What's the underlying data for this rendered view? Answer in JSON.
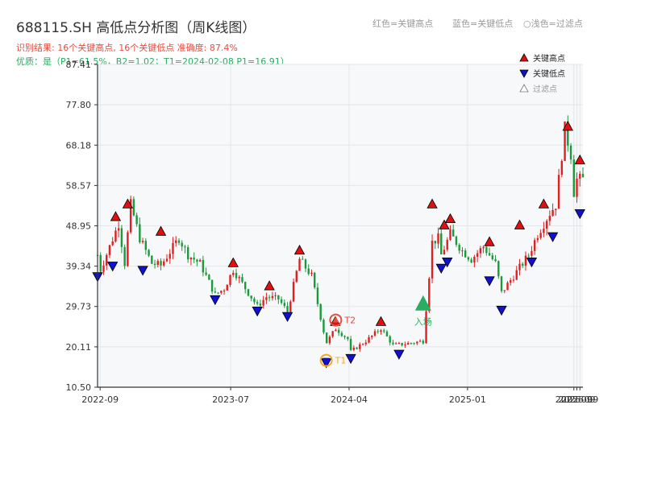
{
  "header": {
    "title": "688115.SH 高低点分析图（周K线图）",
    "result_line": "识别结果: 16个关键高点, 16个关键低点   准确度: 87.4%",
    "quality_line": "优质：是（P1=61.5%，B2=1.02；T1=2024-02-08 P1=16.91）",
    "legend_red": "红色=关键高点",
    "legend_blue": "蓝色=关键低点",
    "legend_light": "○浅色=过滤点"
  },
  "colors": {
    "up": "#e02020",
    "down": "#1a9a3a",
    "high_marker": "#e01010",
    "low_marker": "#1010d0",
    "t1": "#f5a623",
    "t2": "#e74c3c",
    "entry": "#27ae60",
    "plot_bg": "#f7f8fa",
    "grid": "#e3e6ea",
    "axis": "#333333"
  },
  "chart_data": {
    "type": "candlestick",
    "title": "688115.SH 高低点分析图（周K线图）",
    "ylim": [
      10.5,
      87.41
    ],
    "y_ticks": [
      "87.41",
      "77.80",
      "68.18",
      "58.57",
      "48.95",
      "39.34",
      "29.73",
      "20.11",
      "10.50"
    ],
    "x_ticks": [
      {
        "label": "2022-09",
        "date": "2022-09-01"
      },
      {
        "label": "2023-07",
        "date": "2023-07-01"
      },
      {
        "label": "2024-04",
        "date": "2024-04-01"
      },
      {
        "label": "2025-01",
        "date": "2025-01-01"
      },
      {
        "label": "2025-09",
        "date": "2025-09-05"
      },
      {
        "label": "2025-09",
        "date": "2025-09-12"
      },
      {
        "label": "2025-09",
        "date": "2025-09-19"
      }
    ],
    "x_range": [
      "2022-08-26",
      "2025-09-26"
    ],
    "legend": {
      "placement": "top-right",
      "entries": [
        {
          "label": "关键高点",
          "symbol": "triangle-up-red"
        },
        {
          "label": "关键低点",
          "symbol": "triangle-down-blue"
        },
        {
          "label": "过滤点",
          "symbol": "triangle-up-light"
        }
      ]
    },
    "anchors": [
      [
        "2022-08-26",
        42.0
      ],
      [
        "2022-09-02",
        38.5
      ],
      [
        "2022-10-14",
        49.5
      ],
      [
        "2022-10-28",
        40.0
      ],
      [
        "2022-11-11",
        54.0
      ],
      [
        "2022-12-02",
        46.0
      ],
      [
        "2022-12-30",
        40.0
      ],
      [
        "2023-01-20",
        39.5
      ],
      [
        "2023-03-03",
        46.0
      ],
      [
        "2023-03-24",
        42.0
      ],
      [
        "2023-04-21",
        40.0
      ],
      [
        "2023-05-26",
        32.5
      ],
      [
        "2023-06-16",
        34.0
      ],
      [
        "2023-07-07",
        38.5
      ],
      [
        "2023-08-11",
        33.0
      ],
      [
        "2023-09-01",
        29.8
      ],
      [
        "2023-09-22",
        32.0
      ],
      [
        "2023-10-20",
        31.5
      ],
      [
        "2023-11-10",
        28.5
      ],
      [
        "2023-12-08",
        41.0
      ],
      [
        "2024-01-05",
        37.0
      ],
      [
        "2024-02-08",
        21.0
      ],
      [
        "2024-03-01",
        24.5
      ],
      [
        "2024-03-29",
        22.0
      ],
      [
        "2024-04-05",
        19.0
      ],
      [
        "2024-05-10",
        21.5
      ],
      [
        "2024-06-14",
        24.5
      ],
      [
        "2024-07-12",
        20.5
      ],
      [
        "2024-08-09",
        20.8
      ],
      [
        "2024-09-20",
        21.5
      ],
      [
        "2024-10-11",
        45.0
      ],
      [
        "2024-10-25",
        46.0
      ],
      [
        "2024-11-01",
        42.0
      ],
      [
        "2024-11-22",
        47.0
      ],
      [
        "2024-12-20",
        43.0
      ],
      [
        "2025-01-10",
        41.0
      ],
      [
        "2025-02-07",
        44.0
      ],
      [
        "2025-03-07",
        40.0
      ],
      [
        "2025-03-21",
        33.0
      ],
      [
        "2025-04-25",
        38.0
      ],
      [
        "2025-05-23",
        42.0
      ],
      [
        "2025-06-13",
        47.0
      ],
      [
        "2025-07-11",
        52.0
      ],
      [
        "2025-07-25",
        54.0
      ],
      [
        "2025-08-15",
        72.0
      ],
      [
        "2025-08-29",
        66.0
      ],
      [
        "2025-09-05",
        57.0
      ],
      [
        "2025-09-12",
        60.0
      ],
      [
        "2025-09-19",
        60.0
      ]
    ],
    "key_highs": [
      {
        "date": "2022-10-07",
        "value": 50.0
      },
      {
        "date": "2022-11-04",
        "value": 53.0
      },
      {
        "date": "2023-01-20",
        "value": 46.5
      },
      {
        "date": "2023-07-07",
        "value": 39.0
      },
      {
        "date": "2023-09-29",
        "value": 33.5
      },
      {
        "date": "2023-12-08",
        "value": 42.0
      },
      {
        "date": "2024-02-29",
        "value": 25.0
      },
      {
        "date": "2024-06-14",
        "value": 25.0
      },
      {
        "date": "2024-10-11",
        "value": 53.0
      },
      {
        "date": "2024-11-08",
        "value": 48.0
      },
      {
        "date": "2024-11-22",
        "value": 49.5
      },
      {
        "date": "2025-02-21",
        "value": 44.0
      },
      {
        "date": "2025-05-02",
        "value": 48.0
      },
      {
        "date": "2025-06-27",
        "value": 53.0
      },
      {
        "date": "2025-08-22",
        "value": 71.5
      },
      {
        "date": "2025-09-19",
        "value": 63.5
      }
    ],
    "key_lows": [
      {
        "date": "2022-08-26",
        "value": 38.0
      },
      {
        "date": "2022-09-30",
        "value": 40.5
      },
      {
        "date": "2022-12-09",
        "value": 39.5
      },
      {
        "date": "2023-05-26",
        "value": 32.5
      },
      {
        "date": "2023-09-01",
        "value": 29.8
      },
      {
        "date": "2023-11-10",
        "value": 28.5
      },
      {
        "date": "2024-02-08",
        "value": 17.5
      },
      {
        "date": "2024-04-05",
        "value": 18.5
      },
      {
        "date": "2024-07-26",
        "value": 19.5
      },
      {
        "date": "2024-11-01",
        "value": 40.0
      },
      {
        "date": "2024-11-15",
        "value": 41.5
      },
      {
        "date": "2025-02-21",
        "value": 37.0
      },
      {
        "date": "2025-03-21",
        "value": 30.0
      },
      {
        "date": "2025-05-30",
        "value": 41.5
      },
      {
        "date": "2025-07-18",
        "value": 47.5
      },
      {
        "date": "2025-09-19",
        "value": 53.0
      }
    ],
    "annotations": [
      {
        "id": "t1",
        "label": "T1",
        "date": "2024-02-08",
        "value": 16.91
      },
      {
        "id": "t2",
        "label": "T2",
        "date": "2024-03-01",
        "value": 26.5
      },
      {
        "id": "entry",
        "label": "入场",
        "date": "2024-09-20",
        "value": 30.5
      }
    ]
  }
}
